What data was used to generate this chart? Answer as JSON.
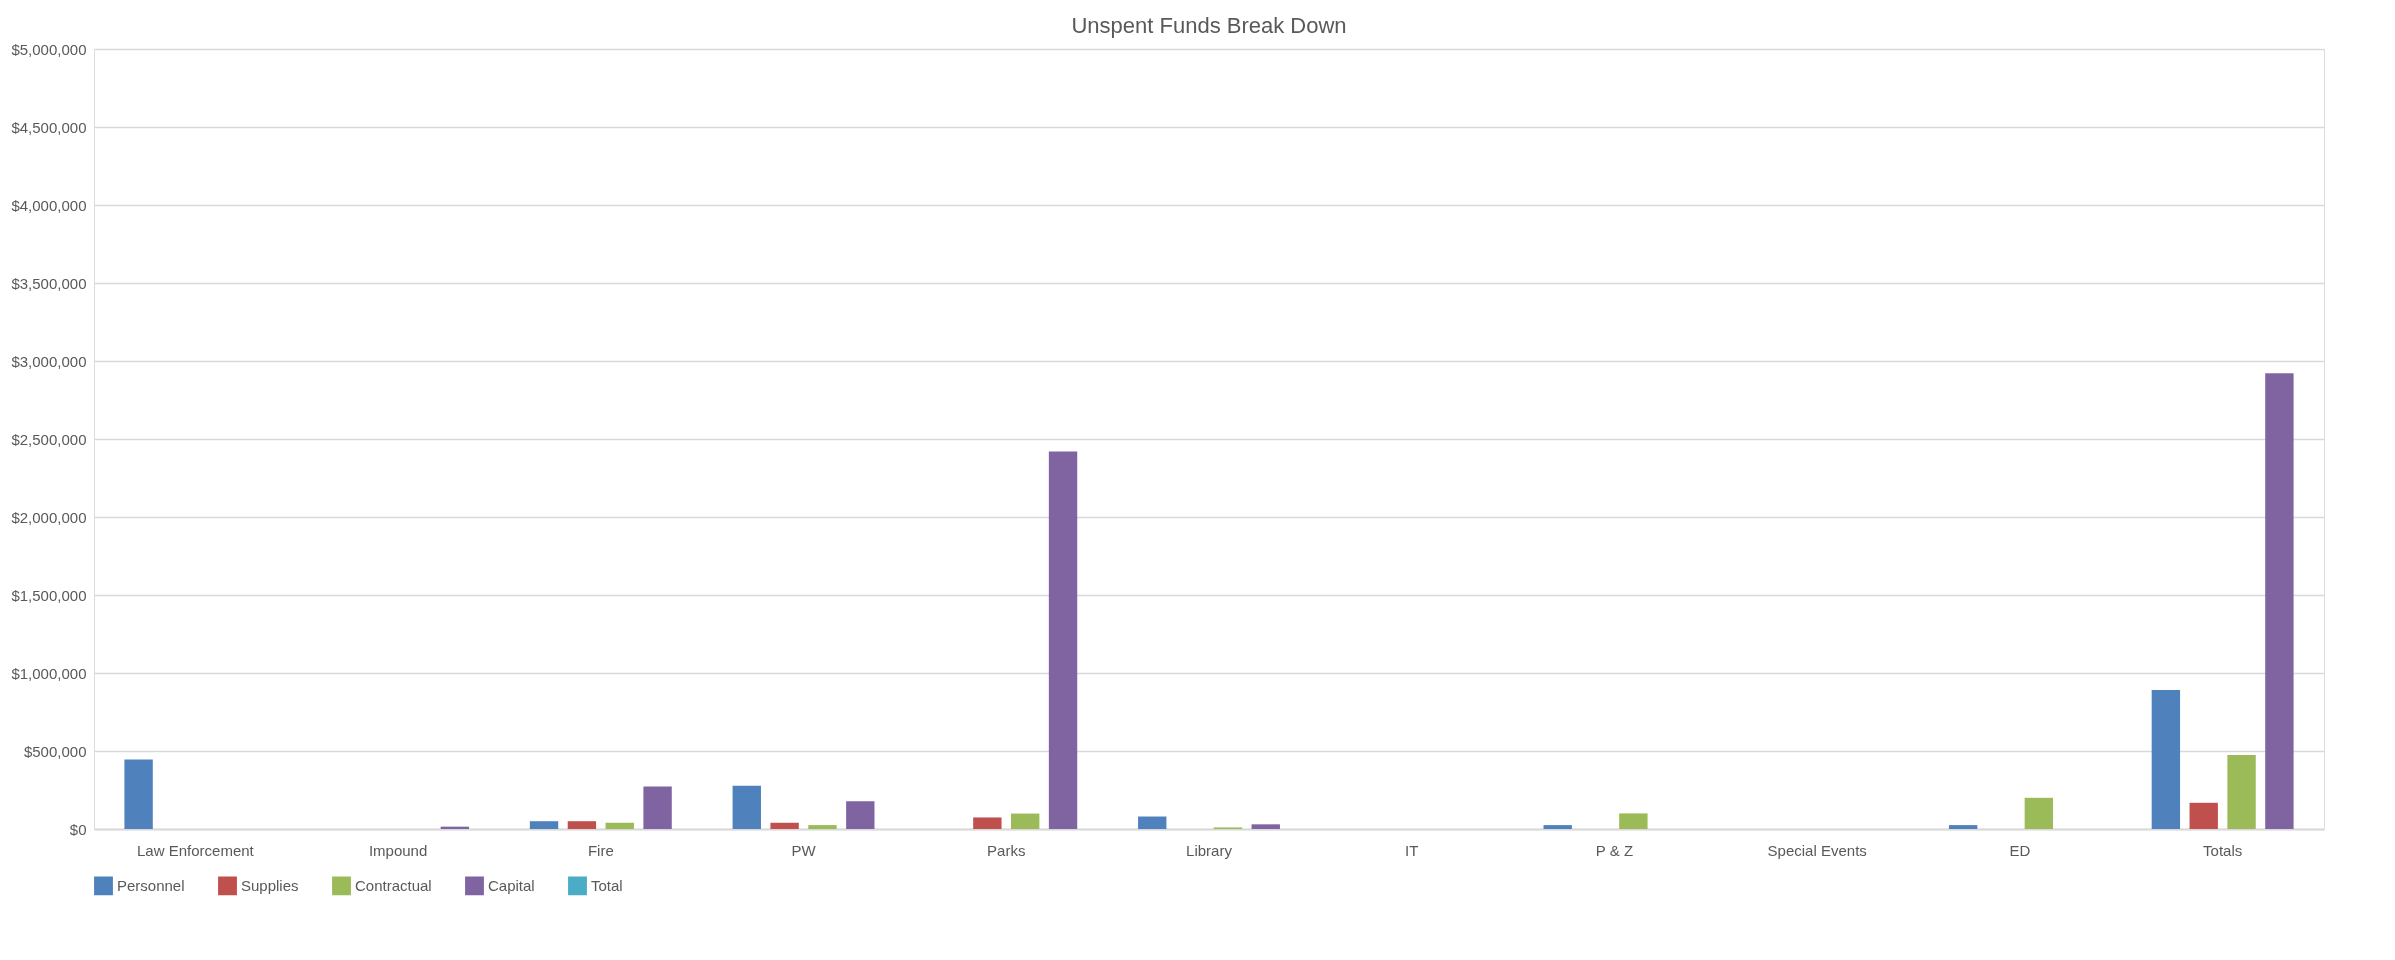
{
  "chart_data": {
    "type": "bar",
    "title": "Unspent Funds Break Down",
    "categories": [
      "Law Enforcement",
      "Impound",
      "Fire",
      "PW",
      "Parks",
      "Library",
      "IT",
      "P & Z",
      "Special Events",
      "ED",
      "Totals"
    ],
    "series": [
      {
        "name": "Personnel",
        "color": "#4f81bd",
        "values": [
          445000,
          0,
          50000,
          277000,
          0,
          80000,
          0,
          25000,
          0,
          25000,
          891000
        ]
      },
      {
        "name": "Supplies",
        "color": "#c0504d",
        "values": [
          0,
          0,
          50000,
          40000,
          74000,
          0,
          0,
          0,
          0,
          0,
          168000
        ]
      },
      {
        "name": "Contractual",
        "color": "#9bbb59",
        "values": [
          0,
          0,
          40000,
          25000,
          99000,
          10000,
          0,
          100000,
          0,
          200000,
          475000
        ]
      },
      {
        "name": "Capital",
        "color": "#8064a2",
        "values": [
          0,
          15000,
          272000,
          178000,
          2420000,
          30000,
          0,
          0,
          0,
          0,
          2922000
        ]
      },
      {
        "name": "Total",
        "color": "#4bacc6",
        "type": "line",
        "values": [
          null,
          null,
          null,
          null,
          null,
          null,
          null,
          null,
          null,
          null,
          null
        ]
      }
    ],
    "ylim": [
      0,
      5000000
    ],
    "yticks": [
      {
        "value": 0,
        "label": "$0"
      },
      {
        "value": 500000,
        "label": "$500,000"
      },
      {
        "value": 1000000,
        "label": "$1,000,000"
      },
      {
        "value": 1500000,
        "label": "$1,500,000"
      },
      {
        "value": 2000000,
        "label": "$2,000,000"
      },
      {
        "value": 2500000,
        "label": "$2,500,000"
      },
      {
        "value": 3000000,
        "label": "$3,000,000"
      },
      {
        "value": 3500000,
        "label": "$3,500,000"
      },
      {
        "value": 4000000,
        "label": "$4,000,000"
      },
      {
        "value": 4500000,
        "label": "$4,500,000"
      },
      {
        "value": 5000000,
        "label": "$5,000,000"
      }
    ],
    "grid": "y",
    "legend": "bottom"
  }
}
